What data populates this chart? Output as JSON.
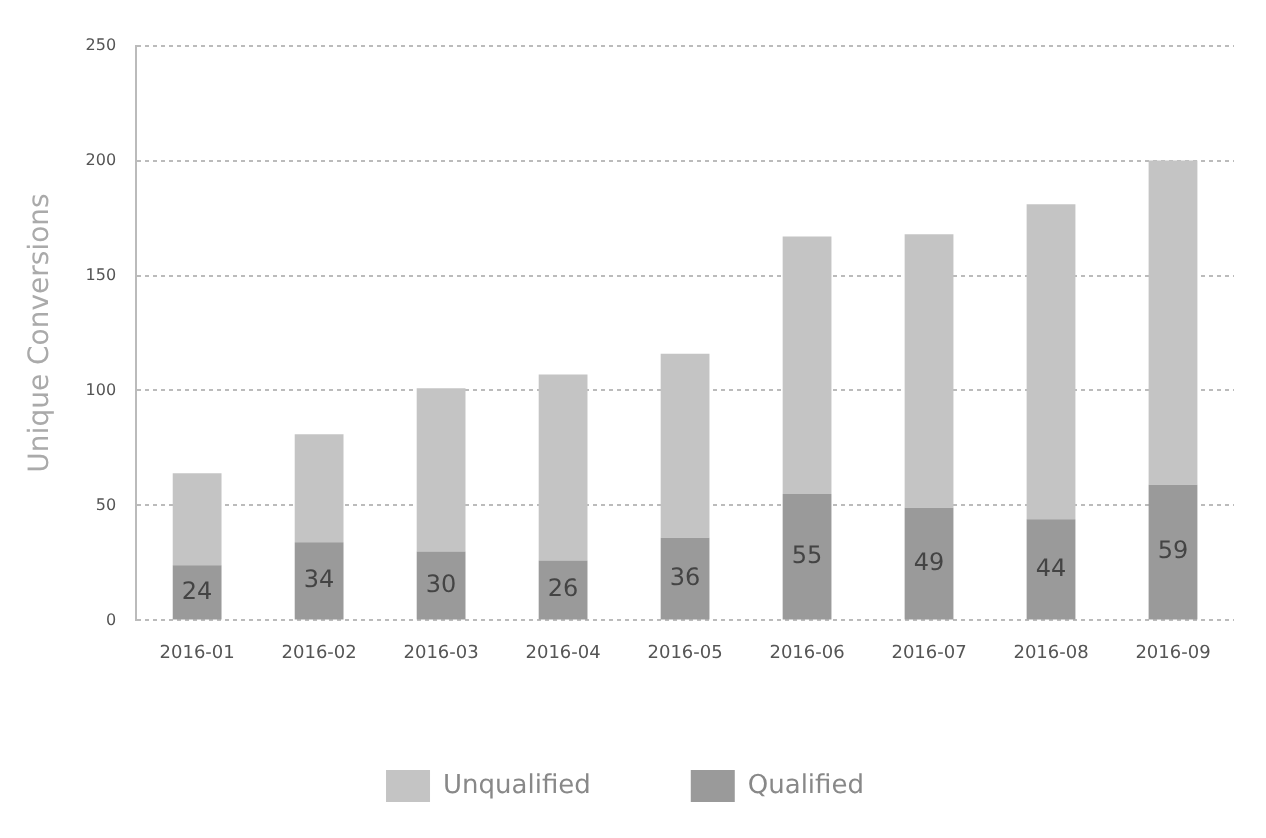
{
  "chart_data": {
    "type": "bar",
    "stacked": true,
    "ylabel": "Unique Conversions",
    "categories": [
      "2016-01",
      "2016-02",
      "2016-03",
      "2016-04",
      "2016-05",
      "2016-06",
      "2016-07",
      "2016-08",
      "2016-09"
    ],
    "series": [
      {
        "name": "Qualified",
        "color": "#9a9a9a",
        "values": [
          24,
          34,
          30,
          26,
          36,
          55,
          49,
          44,
          59
        ],
        "value_labels": [
          "24",
          "34",
          "30",
          "26",
          "36",
          "55",
          "49",
          "44",
          "59"
        ]
      },
      {
        "name": "Unqualified",
        "color": "#c4c4c4",
        "values": [
          40,
          47,
          71,
          81,
          80,
          112,
          119,
          137,
          141
        ]
      }
    ],
    "ylim": [
      0,
      250
    ],
    "yticks": [
      0,
      50,
      100,
      150,
      200,
      250
    ],
    "grid": "y",
    "legend": "bottom"
  }
}
